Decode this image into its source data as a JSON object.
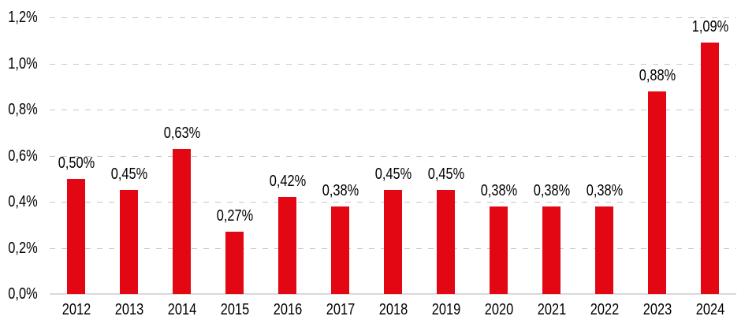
{
  "chart_data": {
    "type": "bar",
    "title": "",
    "categories": [
      "2012",
      "2013",
      "2014",
      "2015",
      "2016",
      "2017",
      "2018",
      "2019",
      "2020",
      "2021",
      "2022",
      "2023",
      "2024"
    ],
    "values": [
      0.5,
      0.45,
      0.63,
      0.27,
      0.42,
      0.38,
      0.45,
      0.45,
      0.38,
      0.38,
      0.38,
      0.88,
      1.09
    ],
    "value_labels": [
      "0,50%",
      "0,45%",
      "0,63%",
      "0,27%",
      "0,42%",
      "0,38%",
      "0,45%",
      "0,45%",
      "0,38%",
      "0,38%",
      "0,38%",
      "0,88%",
      "1,09%"
    ],
    "xlabel": "",
    "ylabel": "",
    "ylim": [
      0,
      1.2
    ],
    "y_ticks": [
      {
        "value": 0.0,
        "label": "0,0%"
      },
      {
        "value": 0.2,
        "label": "0,2%"
      },
      {
        "value": 0.4,
        "label": "0,4%"
      },
      {
        "value": 0.6,
        "label": "0,6%"
      },
      {
        "value": 0.8,
        "label": "0,8%"
      },
      {
        "value": 1.0,
        "label": "1,0%"
      },
      {
        "value": 1.2,
        "label": "1,2%"
      }
    ],
    "grid": "horizontal-dashed",
    "legend_position": "none",
    "colors": {
      "bar": "#e30613",
      "gridline": "#c6c6c6",
      "axis_line": "#d9d9d9",
      "text": "#000000",
      "background": "#ffffff"
    }
  }
}
